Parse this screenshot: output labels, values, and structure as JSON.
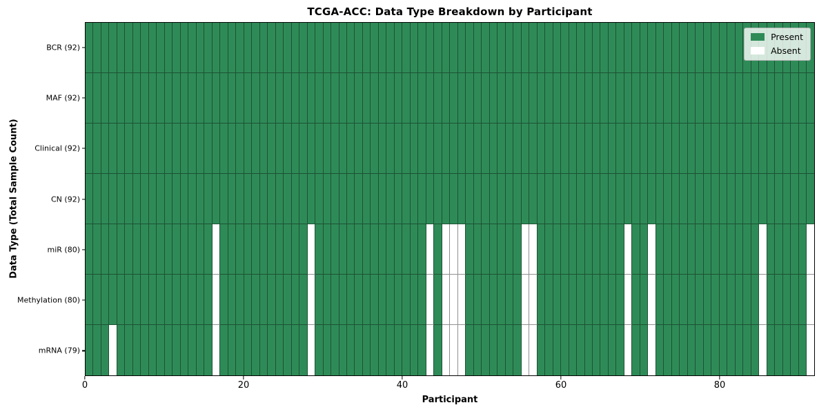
{
  "figure": {
    "title": "TCGA-ACC: Data Type Breakdown by Participant",
    "xlabel": "Participant",
    "ylabel": "Data Type (Total Sample Count)"
  },
  "legend": {
    "items": [
      {
        "label": "Present",
        "color": "#2e8b57"
      },
      {
        "label": "Absent",
        "color": "#ffffff"
      }
    ]
  },
  "chart_data": {
    "type": "heatmap",
    "title": "TCGA-ACC: Data Type Breakdown by Participant",
    "xlabel": "Participant",
    "ylabel": "Data Type (Total Sample Count)",
    "xlim": [
      0,
      92
    ],
    "x_ticks": [
      0,
      20,
      40,
      60,
      80
    ],
    "n_participants": 92,
    "grid": true,
    "legend_position": "upper right",
    "legend_entries": [
      "Present",
      "Absent"
    ],
    "rows": [
      {
        "label": "BCR (92)",
        "name": "BCR",
        "present_count": 92,
        "absent_participants": []
      },
      {
        "label": "MAF (92)",
        "name": "MAF",
        "present_count": 92,
        "absent_participants": []
      },
      {
        "label": "Clinical (92)",
        "name": "Clinical",
        "present_count": 92,
        "absent_participants": []
      },
      {
        "label": "CN (92)",
        "name": "CN",
        "present_count": 92,
        "absent_participants": []
      },
      {
        "label": "miR (80)",
        "name": "miR",
        "present_count": 80,
        "absent_participants": [
          16,
          28,
          43,
          45,
          46,
          47,
          55,
          56,
          68,
          71,
          85,
          91
        ]
      },
      {
        "label": "Methylation (80)",
        "name": "Methylation",
        "present_count": 80,
        "absent_participants": [
          16,
          28,
          43,
          45,
          46,
          47,
          55,
          56,
          68,
          71,
          85,
          91
        ]
      },
      {
        "label": "mRNA (79)",
        "name": "mRNA",
        "present_count": 79,
        "absent_participants": [
          3,
          16,
          28,
          43,
          45,
          46,
          47,
          55,
          56,
          68,
          71,
          85,
          91
        ]
      }
    ],
    "colors": {
      "present": "#2e8b57",
      "absent": "#ffffff",
      "grid_on_green": "#1d5134",
      "grid_on_white": "#8f8f8f",
      "frame": "#000000"
    }
  }
}
